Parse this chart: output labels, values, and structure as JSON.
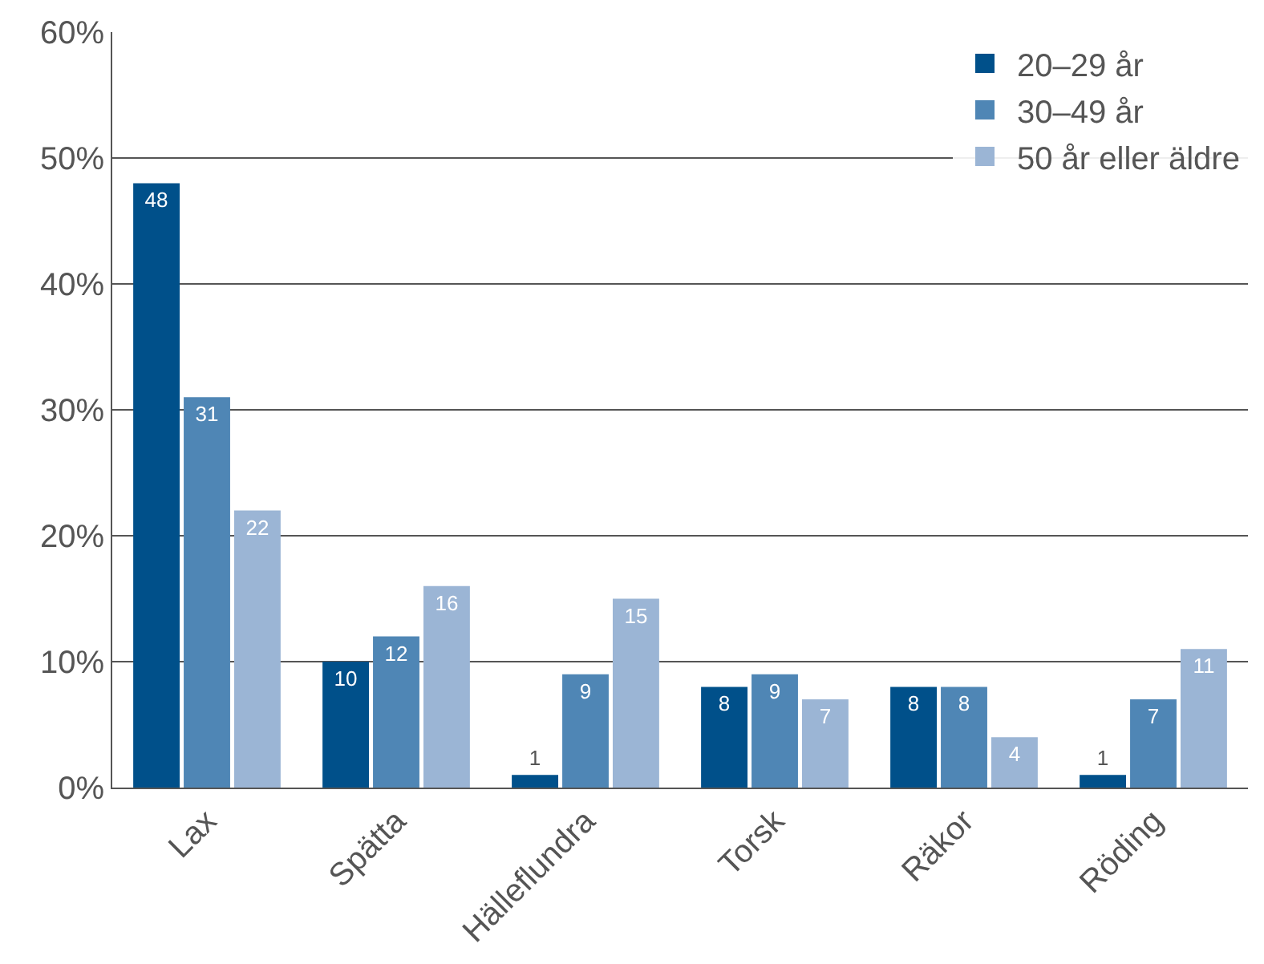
{
  "chart_data": {
    "type": "bar",
    "categories": [
      "Lax",
      "Spätta",
      "Hälleflundra",
      "Torsk",
      "Räkor",
      "Röding"
    ],
    "series": [
      {
        "name": "20–29 år",
        "color": "#00508a",
        "values": [
          48,
          10,
          1,
          8,
          8,
          1
        ]
      },
      {
        "name": "30–49 år",
        "color": "#4f86b5",
        "values": [
          31,
          12,
          9,
          9,
          8,
          7
        ]
      },
      {
        "name": "50 år eller äldre",
        "color": "#9bb5d5",
        "values": [
          22,
          16,
          15,
          7,
          4,
          11
        ]
      }
    ],
    "ylim": [
      0,
      60
    ],
    "yticks": [
      {
        "value": 0,
        "label": "0%"
      },
      {
        "value": 10,
        "label": "10%"
      },
      {
        "value": 20,
        "label": "20%"
      },
      {
        "value": 30,
        "label": "30%"
      },
      {
        "value": 40,
        "label": "40%"
      },
      {
        "value": 50,
        "label": "50%"
      },
      {
        "value": 60,
        "label": "60%"
      }
    ],
    "grid": "y",
    "legend": "top right",
    "data_labels": true
  }
}
